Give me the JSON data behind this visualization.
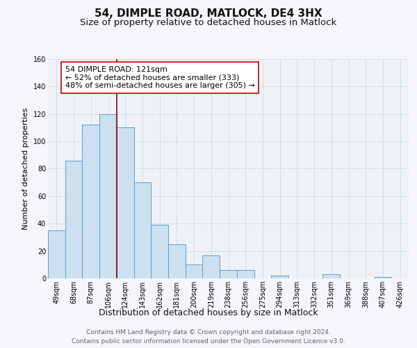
{
  "title": "54, DIMPLE ROAD, MATLOCK, DE4 3HX",
  "subtitle": "Size of property relative to detached houses in Matlock",
  "xlabel": "Distribution of detached houses by size in Matlock",
  "ylabel": "Number of detached properties",
  "bar_labels": [
    "49sqm",
    "68sqm",
    "87sqm",
    "106sqm",
    "124sqm",
    "143sqm",
    "162sqm",
    "181sqm",
    "200sqm",
    "219sqm",
    "238sqm",
    "256sqm",
    "275sqm",
    "294sqm",
    "313sqm",
    "332sqm",
    "351sqm",
    "369sqm",
    "388sqm",
    "407sqm",
    "426sqm"
  ],
  "bar_values": [
    35,
    86,
    112,
    120,
    110,
    70,
    39,
    25,
    10,
    17,
    6,
    6,
    0,
    2,
    0,
    0,
    3,
    0,
    0,
    1,
    0
  ],
  "bar_color": "#cce0f0",
  "bar_edgecolor": "#5b9bd5",
  "property_line_color": "#8b0000",
  "annotation_line1": "54 DIMPLE ROAD: 121sqm",
  "annotation_line2": "← 52% of detached houses are smaller (333)",
  "annotation_line3": "48% of semi-detached houses are larger (305) →",
  "annotation_box_color": "#ffffff",
  "annotation_box_edgecolor": "#cc0000",
  "ylim": [
    0,
    160
  ],
  "yticks": [
    0,
    20,
    40,
    60,
    80,
    100,
    120,
    140,
    160
  ],
  "grid_color": "#d0d8e0",
  "background_color": "#eef2f7",
  "fig_facecolor": "#f5f5fa",
  "footer_text": "Contains HM Land Registry data © Crown copyright and database right 2024.\nContains public sector information licensed under the Open Government Licence v3.0.",
  "title_fontsize": 11,
  "subtitle_fontsize": 9.5,
  "xlabel_fontsize": 9,
  "ylabel_fontsize": 8,
  "tick_fontsize": 7,
  "annotation_fontsize": 8,
  "footer_fontsize": 6.5
}
